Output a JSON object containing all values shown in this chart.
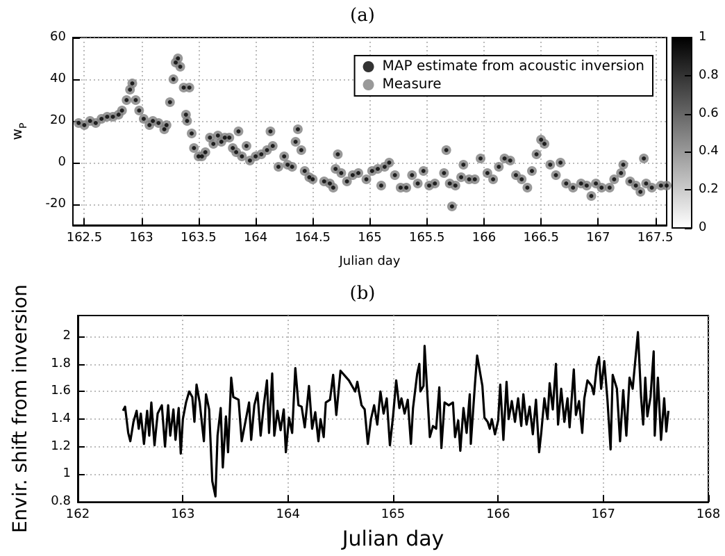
{
  "chart_data": [
    {
      "type": "scatter",
      "title": "(a)",
      "xlabel": "Julian day",
      "ylabel": "w$_{P}$",
      "xlim": [
        162.4,
        167.6
      ],
      "xticks": [
        162.5,
        163,
        163.5,
        164,
        164.5,
        165,
        165.5,
        166,
        166.5,
        167,
        167.5
      ],
      "ylim": [
        -30,
        60
      ],
      "yticks": [
        -20,
        0,
        20,
        40,
        60
      ],
      "grid": true,
      "legend": "top right",
      "clim": [
        0,
        1
      ],
      "cticks": [
        0,
        0.2,
        0.4,
        0.6,
        0.8,
        1
      ],
      "x": [
        162.45,
        162.5,
        162.55,
        162.6,
        162.65,
        162.7,
        162.75,
        162.8,
        162.83,
        162.87,
        162.9,
        162.92,
        162.95,
        162.98,
        163.02,
        163.07,
        163.1,
        163.15,
        163.2,
        163.22,
        163.25,
        163.28,
        163.3,
        163.32,
        163.34,
        163.37,
        163.39,
        163.4,
        163.42,
        163.44,
        163.46,
        163.5,
        163.53,
        163.56,
        163.6,
        163.63,
        163.67,
        163.7,
        163.73,
        163.77,
        163.8,
        163.83,
        163.85,
        163.88,
        163.92,
        163.95,
        164.0,
        164.05,
        164.1,
        164.13,
        164.15,
        164.2,
        164.25,
        164.28,
        164.32,
        164.35,
        164.37,
        164.4,
        164.43,
        164.47,
        164.5,
        164.6,
        164.65,
        164.68,
        164.7,
        164.72,
        164.75,
        164.8,
        164.85,
        164.9,
        164.97,
        165.02,
        165.07,
        165.1,
        165.13,
        165.17,
        165.22,
        165.27,
        165.32,
        165.37,
        165.42,
        165.47,
        165.52,
        165.57,
        165.65,
        165.67,
        165.7,
        165.72,
        165.75,
        165.8,
        165.82,
        165.87,
        165.92,
        165.97,
        166.03,
        166.08,
        166.13,
        166.18,
        166.23,
        166.28,
        166.33,
        166.38,
        166.42,
        166.46,
        166.5,
        166.53,
        166.58,
        166.63,
        166.67,
        166.72,
        166.78,
        166.85,
        166.9,
        166.94,
        166.98,
        167.03,
        167.1,
        167.14,
        167.2,
        167.22,
        167.28,
        167.33,
        167.37,
        167.4,
        167.42,
        167.47,
        167.55,
        167.6
      ],
      "series": [
        {
          "name": "MAP estimate from acoustic inversion",
          "color": "#000000",
          "values": [
            19,
            18,
            20,
            19,
            21,
            22,
            22,
            23,
            25,
            30,
            35,
            38,
            30,
            25,
            21,
            18,
            20,
            19,
            16,
            18,
            29,
            40,
            48,
            50,
            46,
            36,
            23,
            20,
            36,
            14,
            7,
            3,
            3,
            5,
            12,
            9,
            13,
            10,
            12,
            12,
            7,
            5,
            15,
            3,
            8,
            1,
            3,
            4,
            6,
            15,
            8,
            -2,
            3,
            -1,
            -2,
            10,
            16,
            6,
            -4,
            -7,
            -8,
            -9,
            -10,
            -12,
            -3,
            4,
            -5,
            -9,
            -6,
            -5,
            -8,
            -4,
            -3,
            -11,
            -2,
            0,
            -6,
            -12,
            -12,
            -6,
            -10,
            -4,
            -11,
            -10,
            -5,
            6,
            -10,
            -21,
            -11,
            -7,
            -1,
            -8,
            -8,
            2,
            -5,
            -8,
            -2,
            2,
            1,
            -6,
            -8,
            -12,
            -4,
            4,
            11,
            9,
            -1,
            -6,
            0,
            -10,
            -12,
            -10,
            -11,
            -16,
            -10,
            -12,
            -12,
            -8,
            -5,
            -1,
            -9,
            -11,
            -14,
            2,
            -10,
            -12,
            -11,
            -11
          ],
          "cvalues": [
            1,
            1,
            1,
            1,
            1,
            1,
            1,
            1,
            1,
            1,
            1,
            1,
            1,
            1,
            1,
            1,
            1,
            1,
            1,
            1,
            1,
            1,
            1,
            1,
            1,
            1,
            1,
            1,
            1,
            1,
            1,
            1,
            1,
            1,
            1,
            1,
            1,
            1,
            1,
            1,
            1,
            1,
            1,
            1,
            1,
            1,
            1,
            1,
            1,
            1,
            1,
            1,
            1,
            1,
            1,
            1,
            1,
            1,
            1,
            1,
            1,
            1,
            1,
            1,
            1,
            1,
            1,
            1,
            1,
            1,
            1,
            1,
            1,
            1,
            1,
            1,
            1,
            1,
            1,
            1,
            1,
            1,
            1,
            1,
            1,
            1,
            1,
            1,
            1,
            1,
            1,
            1,
            1,
            1,
            1,
            1,
            1,
            1,
            1,
            1,
            1,
            1,
            1,
            1,
            1,
            1,
            1,
            1,
            1,
            1,
            1,
            1,
            1,
            1,
            1,
            1,
            1,
            1,
            1,
            1,
            1,
            1,
            1,
            1,
            1,
            1,
            1,
            1
          ]
        },
        {
          "name": "Measure",
          "color": "#808080",
          "values": [
            19,
            18,
            20,
            19,
            21,
            22,
            22,
            23,
            25,
            30,
            35,
            38,
            30,
            25,
            21,
            18,
            20,
            19,
            16,
            18,
            29,
            40,
            48,
            50,
            46,
            36,
            23,
            20,
            36,
            14,
            7,
            3,
            3,
            5,
            12,
            9,
            13,
            10,
            12,
            12,
            7,
            5,
            15,
            3,
            8,
            1,
            3,
            4,
            6,
            15,
            8,
            -2,
            3,
            -1,
            -2,
            10,
            16,
            6,
            -4,
            -7,
            -8,
            -9,
            -10,
            -12,
            -3,
            4,
            -5,
            -9,
            -6,
            -5,
            -8,
            -4,
            -3,
            -11,
            -2,
            0,
            -6,
            -12,
            -12,
            -6,
            -10,
            -4,
            -11,
            -10,
            -5,
            6,
            -10,
            -21,
            -11,
            -7,
            -1,
            -8,
            -8,
            2,
            -5,
            -8,
            -2,
            2,
            1,
            -6,
            -8,
            -12,
            -4,
            4,
            11,
            9,
            -1,
            -6,
            0,
            -10,
            -12,
            -10,
            -11,
            -16,
            -10,
            -12,
            -12,
            -8,
            -5,
            -1,
            -9,
            -11,
            -14,
            2,
            -10,
            -12,
            -11,
            -11
          ]
        }
      ]
    },
    {
      "type": "line",
      "title": "(b)",
      "xlabel": "Julian day",
      "ylabel": "Envir. shift from inversion",
      "xlim": [
        162,
        168
      ],
      "xticks": [
        162,
        163,
        164,
        165,
        166,
        167,
        168
      ],
      "ylim": [
        0.8,
        2.15
      ],
      "yticks": [
        0.8,
        1,
        1.2,
        1.4,
        1.6,
        1.8,
        2
      ],
      "grid": true,
      "marker": "none",
      "series": [
        {
          "color": "#000000",
          "x": [
            162.43,
            162.45,
            162.48,
            162.5,
            162.53,
            162.56,
            162.58,
            162.6,
            162.63,
            162.66,
            162.68,
            162.7,
            162.73,
            162.76,
            162.8,
            162.83,
            162.86,
            162.88,
            162.91,
            162.93,
            162.96,
            162.98,
            163.0,
            163.03,
            163.06,
            163.09,
            163.11,
            163.13,
            163.16,
            163.2,
            163.22,
            163.25,
            163.28,
            163.31,
            163.33,
            163.36,
            163.38,
            163.41,
            163.43,
            163.46,
            163.48,
            163.53,
            163.56,
            163.6,
            163.63,
            163.65,
            163.68,
            163.71,
            163.74,
            163.77,
            163.8,
            163.82,
            163.85,
            163.87,
            163.9,
            163.93,
            163.96,
            163.98,
            164.01,
            164.04,
            164.07,
            164.1,
            164.13,
            164.16,
            164.2,
            164.23,
            164.26,
            164.29,
            164.31,
            164.34,
            164.36,
            164.4,
            164.43,
            164.46,
            164.5,
            164.58,
            164.64,
            164.66,
            164.7,
            164.73,
            164.76,
            164.79,
            164.82,
            164.85,
            164.88,
            164.91,
            164.94,
            164.97,
            165.0,
            165.03,
            165.06,
            165.08,
            165.11,
            165.14,
            165.17,
            165.19,
            165.23,
            165.25,
            165.26,
            165.29,
            165.3,
            165.35,
            165.38,
            165.41,
            165.44,
            165.46,
            165.49,
            165.53,
            165.57,
            165.59,
            165.62,
            165.64,
            165.67,
            165.7,
            165.73,
            165.74,
            165.78,
            165.8,
            165.85,
            165.87,
            165.9,
            165.92,
            165.94,
            165.97,
            166.0,
            166.02,
            166.05,
            166.08,
            166.1,
            166.13,
            166.16,
            166.19,
            166.22,
            166.24,
            166.27,
            166.3,
            166.33,
            166.36,
            166.39,
            166.41,
            166.44,
            166.47,
            166.49,
            166.52,
            166.55,
            166.57,
            166.6,
            166.63,
            166.66,
            166.68,
            166.72,
            166.74,
            166.77,
            166.8,
            166.82,
            166.85,
            166.89,
            166.91,
            166.94,
            166.96,
            166.98,
            167.01,
            167.04,
            167.07,
            167.09,
            167.13,
            167.16,
            167.19,
            167.22,
            167.25,
            167.28,
            167.33,
            167.36,
            167.38,
            167.4,
            167.42,
            167.45,
            167.48,
            167.49,
            167.52,
            167.55,
            167.58,
            167.6,
            167.62
          ],
          "values": [
            1.46,
            1.49,
            1.3,
            1.24,
            1.38,
            1.46,
            1.33,
            1.44,
            1.22,
            1.46,
            1.28,
            1.52,
            1.21,
            1.44,
            1.5,
            1.2,
            1.5,
            1.28,
            1.47,
            1.25,
            1.48,
            1.15,
            1.4,
            1.52,
            1.6,
            1.56,
            1.38,
            1.65,
            1.52,
            1.24,
            1.58,
            1.47,
            0.95,
            0.84,
            1.28,
            1.48,
            1.05,
            1.42,
            1.16,
            1.7,
            1.56,
            1.54,
            1.24,
            1.4,
            1.52,
            1.25,
            1.5,
            1.59,
            1.28,
            1.5,
            1.68,
            1.3,
            1.73,
            1.28,
            1.46,
            1.32,
            1.47,
            1.16,
            1.41,
            1.3,
            1.77,
            1.5,
            1.49,
            1.34,
            1.64,
            1.33,
            1.45,
            1.24,
            1.4,
            1.27,
            1.52,
            1.54,
            1.72,
            1.43,
            1.75,
            1.68,
            1.6,
            1.67,
            1.5,
            1.47,
            1.22,
            1.4,
            1.5,
            1.36,
            1.6,
            1.44,
            1.55,
            1.21,
            1.42,
            1.68,
            1.48,
            1.55,
            1.44,
            1.54,
            1.22,
            1.48,
            1.73,
            1.8,
            1.6,
            1.64,
            1.93,
            1.27,
            1.35,
            1.33,
            1.63,
            1.19,
            1.52,
            1.5,
            1.52,
            1.27,
            1.39,
            1.17,
            1.48,
            1.3,
            1.58,
            1.22,
            1.66,
            1.86,
            1.64,
            1.41,
            1.38,
            1.33,
            1.4,
            1.29,
            1.39,
            1.65,
            1.25,
            1.67,
            1.4,
            1.53,
            1.38,
            1.55,
            1.35,
            1.58,
            1.36,
            1.49,
            1.29,
            1.54,
            1.16,
            1.3,
            1.55,
            1.4,
            1.66,
            1.47,
            1.8,
            1.36,
            1.62,
            1.38,
            1.55,
            1.34,
            1.76,
            1.43,
            1.53,
            1.3,
            1.55,
            1.68,
            1.64,
            1.58,
            1.79,
            1.85,
            1.62,
            1.82,
            1.54,
            1.18,
            1.72,
            1.62,
            1.24,
            1.61,
            1.28,
            1.7,
            1.62,
            2.03,
            1.56,
            1.36,
            1.7,
            1.42,
            1.56,
            1.89,
            1.28,
            1.7,
            1.25,
            1.55,
            1.31,
            1.46
          ]
        }
      ]
    }
  ]
}
